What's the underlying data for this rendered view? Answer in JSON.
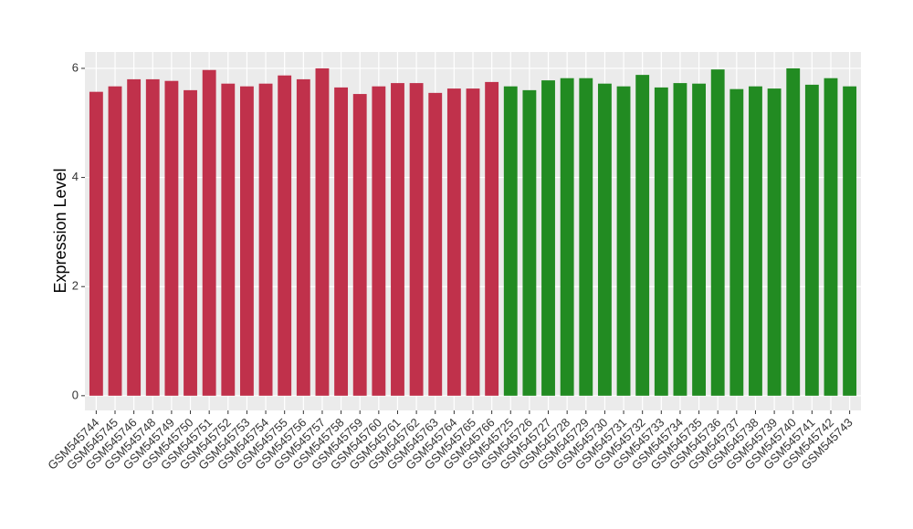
{
  "chart_data": {
    "type": "bar",
    "y_label": "Expression Level",
    "categories": [
      "GSM545744",
      "GSM545745",
      "GSM545746",
      "GSM545748",
      "GSM545749",
      "GSM545750",
      "GSM545751",
      "GSM545752",
      "GSM545753",
      "GSM545754",
      "GSM545755",
      "GSM545756",
      "GSM545757",
      "GSM545758",
      "GSM545759",
      "GSM545760",
      "GSM545761",
      "GSM545762",
      "GSM545763",
      "GSM545764",
      "GSM545765",
      "GSM545766",
      "GSM545725",
      "GSM545726",
      "GSM545727",
      "GSM545728",
      "GSM545729",
      "GSM545730",
      "GSM545731",
      "GSM545732",
      "GSM545733",
      "GSM545734",
      "GSM545735",
      "GSM545736",
      "GSM545737",
      "GSM545738",
      "GSM545739",
      "GSM545740",
      "GSM545741",
      "GSM545742",
      "GSM545743"
    ],
    "values": [
      5.57,
      5.67,
      5.8,
      5.8,
      5.77,
      5.6,
      5.97,
      5.72,
      5.67,
      5.72,
      5.87,
      5.8,
      6.0,
      5.65,
      5.53,
      5.67,
      5.73,
      5.73,
      5.55,
      5.63,
      5.63,
      5.75,
      5.67,
      5.6,
      5.78,
      5.82,
      5.82,
      5.72,
      5.67,
      5.88,
      5.65,
      5.73,
      5.72,
      5.98,
      5.62,
      5.67,
      5.63,
      6.0,
      5.7,
      5.82,
      5.67
    ],
    "colors": [
      "#c0314b",
      "#c0314b",
      "#c0314b",
      "#c0314b",
      "#c0314b",
      "#c0314b",
      "#c0314b",
      "#c0314b",
      "#c0314b",
      "#c0314b",
      "#c0314b",
      "#c0314b",
      "#c0314b",
      "#c0314b",
      "#c0314b",
      "#c0314b",
      "#c0314b",
      "#c0314b",
      "#c0314b",
      "#c0314b",
      "#c0314b",
      "#c0314b",
      "#228b22",
      "#228b22",
      "#228b22",
      "#228b22",
      "#228b22",
      "#228b22",
      "#228b22",
      "#228b22",
      "#228b22",
      "#228b22",
      "#228b22",
      "#228b22",
      "#228b22",
      "#228b22",
      "#228b22",
      "#228b22",
      "#228b22",
      "#228b22",
      "#228b22"
    ],
    "ylim": [
      -0.27,
      6.3
    ],
    "yticks": [
      0,
      2,
      4,
      6
    ],
    "grid": true
  }
}
